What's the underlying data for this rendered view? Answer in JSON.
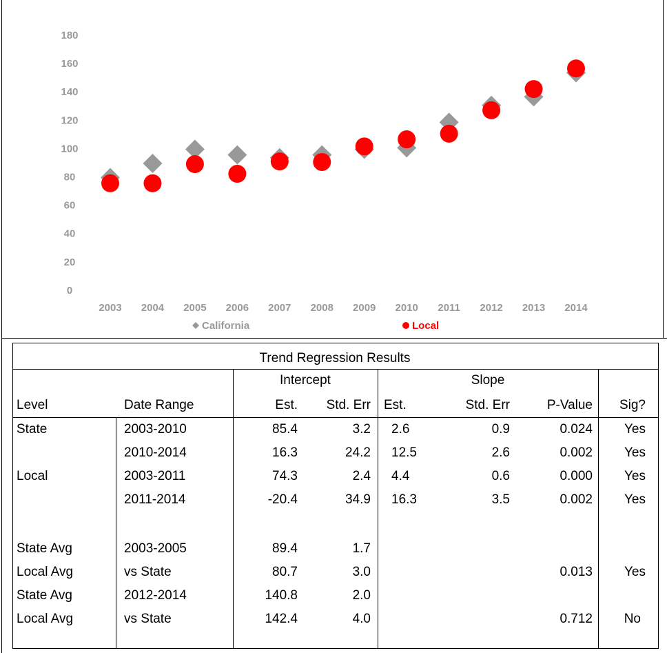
{
  "chart_data": {
    "type": "scatter",
    "categories": [
      "2003",
      "2004",
      "2005",
      "2006",
      "2007",
      "2008",
      "2009",
      "2010",
      "2011",
      "2012",
      "2013",
      "2014"
    ],
    "series": [
      {
        "name": "California",
        "color": "#999999",
        "marker": "diamond",
        "values": [
          80,
          90,
          100,
          96,
          94,
          96,
          100,
          101,
          119,
          131,
          137,
          154
        ]
      },
      {
        "name": "Local",
        "color": "#ff0000",
        "marker": "circle",
        "values": [
          76,
          76,
          89.5,
          82.7,
          91.4,
          91,
          102,
          107,
          111,
          127.5,
          142.5,
          157
        ]
      }
    ],
    "ylim": [
      0,
      180
    ],
    "yticks": [
      0,
      20,
      40,
      60,
      80,
      100,
      120,
      140,
      160,
      180
    ],
    "grid": false,
    "legend": "bottom"
  },
  "table": {
    "title": "Trend Regression Results",
    "groups": [
      "Intercept",
      "Slope"
    ],
    "columns": [
      "Level",
      "Date Range",
      "Est.",
      "Std. Err",
      "Est.",
      "Std. Err",
      "P-Value",
      "Sig?"
    ],
    "rows": [
      [
        "State",
        "2003-2010",
        "85.4",
        "3.2",
        "2.6",
        "0.9",
        "0.024",
        "Yes"
      ],
      [
        null,
        "2010-2014",
        "16.3",
        "24.2",
        "12.5",
        "2.6",
        "0.002",
        "Yes"
      ],
      [
        "Local",
        "2003-2011",
        "74.3",
        "2.4",
        "4.4",
        "0.6",
        "0.000",
        "Yes"
      ],
      [
        null,
        "2011-2014",
        "-20.4",
        "34.9",
        "16.3",
        "3.5",
        "0.002",
        "Yes"
      ],
      [
        "State Avg",
        "2003-2005",
        "89.4",
        "1.7",
        null,
        null,
        null,
        null
      ],
      [
        "Local Avg",
        "vs State",
        "80.7",
        "3.0",
        null,
        null,
        "0.013",
        "Yes"
      ],
      [
        "State Avg",
        "2012-2014",
        "140.8",
        "2.0",
        null,
        null,
        null,
        null
      ],
      [
        "Local Avg",
        "vs State",
        "142.4",
        "4.0",
        null,
        null,
        "0.712",
        "No"
      ]
    ]
  }
}
